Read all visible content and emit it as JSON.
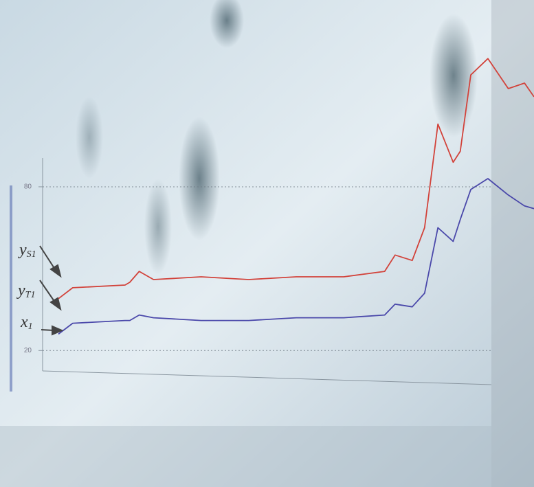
{
  "chart_data": {
    "type": "line",
    "x": [
      0,
      3,
      14,
      15,
      17,
      20,
      30,
      40,
      50,
      60,
      68.6,
      70.8,
      74.4,
      77,
      79.8,
      83,
      84.5,
      86.7,
      90.3,
      94.6,
      98,
      100
    ],
    "xlim": [
      0,
      100
    ],
    "series": [
      {
        "color": "#d2423a",
        "values": [
          39,
          43,
          44,
          45,
          49,
          46,
          47,
          46,
          47,
          47,
          49,
          55,
          53,
          65,
          103,
          89,
          93,
          121,
          127,
          116,
          118,
          113
        ]
      },
      {
        "color": "#4a48aa",
        "values": [
          26,
          30,
          31,
          31,
          33,
          32,
          31,
          31,
          32,
          32,
          33,
          37,
          36,
          41,
          65,
          60,
          68,
          79,
          83,
          77,
          73,
          72
        ]
      }
    ],
    "ylim": [
      10,
      135
    ],
    "yticks": [
      20,
      80
    ],
    "grid": true,
    "annotations": [
      {
        "main": "y",
        "sub": "S1"
      },
      {
        "main": "y",
        "sub": "T1"
      },
      {
        "main": "x",
        "sub": "1"
      }
    ]
  }
}
